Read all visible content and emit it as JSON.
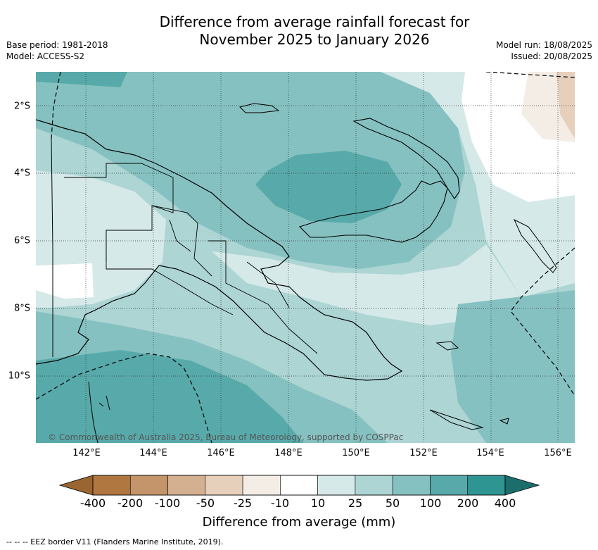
{
  "header": {
    "title_line1": "Difference from average rainfall forecast for",
    "title_line2": "November 2025 to January 2026",
    "base_period": "Base period: 1981-2018",
    "model": "Model: ACCESS-S2",
    "model_run": "Model run: 18/08/2025",
    "issued": "Issued: 20/08/2025"
  },
  "map": {
    "region": "Papua New Guinea",
    "lat_labels": [
      "2°S",
      "4°S",
      "6°S",
      "8°S",
      "10°S"
    ],
    "lon_labels": [
      "142°E",
      "144°E",
      "146°E",
      "148°E",
      "150°E",
      "152°E",
      "154°E",
      "156°E"
    ],
    "copyright": "© Commonwealth of Australia 2025, Bureau of Meteorology, supported by COSPPac",
    "line_style_note": "EEZ border dashed, coastlines solid black"
  },
  "colorbar": {
    "title": "Difference from average (mm)",
    "labels": [
      "-400",
      "-200",
      "-100",
      "-50",
      "-25",
      "-10",
      "10",
      "25",
      "50",
      "100",
      "200",
      "400"
    ],
    "colors": {
      "lt_-400": "#9a6530",
      "-400_-200": "#b07840",
      "-200_-100": "#c4946a",
      "-100_-50": "#d4b090",
      "-50_-25": "#e6d0bc",
      "-25_-10": "#f3ede6",
      "-10_10": "#ffffff",
      "10_25": "#d5e9e8",
      "25_50": "#acd5d4",
      "50_100": "#86c1c1",
      "100_200": "#58aaaa",
      "200_400": "#2e9592",
      "gt_400": "#1b6e6c"
    }
  },
  "footnote": "-- -- -- EEZ border V11 (Flanders Marine Institute, 2019)."
}
